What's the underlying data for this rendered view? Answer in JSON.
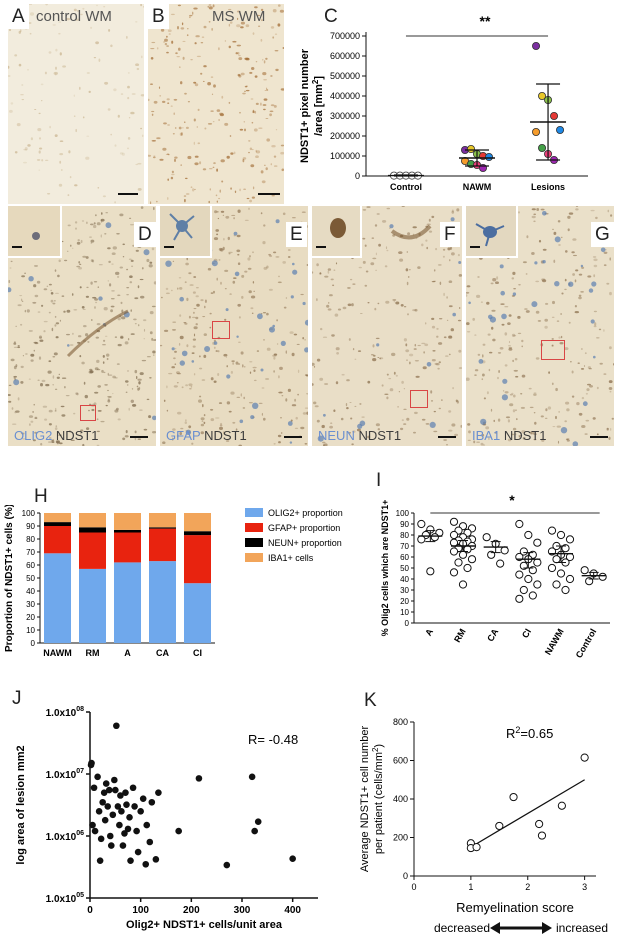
{
  "panels": {
    "A": {
      "letter": "A",
      "label": "control WM"
    },
    "B": {
      "letter": "B",
      "label": "MS WM"
    },
    "C": {
      "letter": "C"
    },
    "D": {
      "letter": "D",
      "stain_a": "OLIG2",
      "stain_b": "NDST1"
    },
    "E": {
      "letter": "E",
      "stain_a": "GFAP",
      "stain_b": "NDST1"
    },
    "F": {
      "letter": "F",
      "stain_a": "NEUN",
      "stain_b": "NDST1"
    },
    "G": {
      "letter": "G",
      "stain_a": "IBA1",
      "stain_b": "NDST1"
    },
    "H": {
      "letter": "H"
    },
    "I": {
      "letter": "I"
    },
    "J": {
      "letter": "J"
    },
    "K": {
      "letter": "K"
    }
  },
  "colors": {
    "olig2": "#6fa8ec",
    "gfap": "#e8230f",
    "neun": "#000000",
    "iba1": "#f2a55a",
    "tissue": "#f1e9d8",
    "dab": "#a06a32"
  },
  "chart_data": [
    {
      "panel": "C",
      "type": "scatter",
      "ylabel_line1": "NDST1+ pixel number",
      "ylabel_line2": "/area [mm",
      "ylabel_sup": "2",
      "ylabel_end": "]",
      "ylim": [
        0,
        700000
      ],
      "yticks": [
        "0",
        "100000",
        "200000",
        "300000",
        "400000",
        "500000",
        "600000",
        "700000"
      ],
      "categories": [
        "Control",
        "NAWM",
        "Lesions"
      ],
      "significance": "**",
      "groups": [
        {
          "name": "Control",
          "mean": 2000,
          "sd_low": 0,
          "sd_high": 5000,
          "points": [
            2000,
            2000,
            2000,
            2000,
            2000
          ]
        },
        {
          "name": "NAWM",
          "mean": 90000,
          "sd_low": 50000,
          "sd_high": 130000,
          "points": [
            130000,
            135000,
            110000,
            100000,
            95000,
            75000,
            60000,
            55000,
            40000
          ]
        },
        {
          "name": "Lesions",
          "mean": 270000,
          "sd_low": 80000,
          "sd_high": 460000,
          "points": [
            650000,
            400000,
            380000,
            300000,
            230000,
            220000,
            140000,
            110000,
            80000
          ]
        }
      ],
      "point_colors": [
        "#7b2ea0",
        "#e8c829",
        "#8bc34a",
        "#e53935",
        "#1e88e5",
        "#f59c2c",
        "#43a047",
        "#ec407a",
        "#9c27b0"
      ]
    },
    {
      "panel": "H",
      "type": "bar",
      "stacked": true,
      "ylabel": "Proportion of NDST1+ cells (%)",
      "ylim": [
        0,
        100
      ],
      "yticks": [
        "0",
        "10",
        "20",
        "30",
        "40",
        "50",
        "60",
        "70",
        "80",
        "90",
        "100"
      ],
      "categories": [
        "NAWM",
        "RM",
        "A",
        "CA",
        "CI"
      ],
      "series": [
        {
          "name": "OLIG2+ proportion",
          "values": [
            69,
            57,
            62,
            63,
            46
          ]
        },
        {
          "name": "GFAP+ proportion",
          "values": [
            21,
            28,
            23,
            25,
            37
          ]
        },
        {
          "name": "NEUN+ proportion",
          "values": [
            3,
            4,
            2,
            1,
            3
          ]
        },
        {
          "name": "IBA1+ cells",
          "values": [
            7,
            11,
            13,
            11,
            14
          ]
        }
      ]
    },
    {
      "panel": "I",
      "type": "scatter",
      "ylabel": "% Olig2 cells which are NDST1+",
      "ylim": [
        0,
        100
      ],
      "yticks": [
        "0",
        "10",
        "20",
        "30",
        "40",
        "50",
        "60",
        "70",
        "80",
        "90",
        "100"
      ],
      "categories": [
        "A",
        "RM",
        "CA",
        "CI",
        "NAWM",
        "Control"
      ],
      "significance": "*",
      "groups": [
        {
          "name": "A",
          "mean": 79,
          "sd_low": 74,
          "sd_high": 84,
          "points": [
            90,
            85,
            82,
            80,
            78,
            76,
            47
          ]
        },
        {
          "name": "RM",
          "mean": 70,
          "sd_low": 65,
          "sd_high": 75,
          "points": [
            92,
            88,
            86,
            84,
            82,
            80,
            78,
            76,
            75,
            74,
            73,
            72,
            70,
            68,
            67,
            65,
            62,
            58,
            55,
            50,
            46,
            35
          ]
        },
        {
          "name": "CA",
          "mean": 69,
          "sd_low": 64,
          "sd_high": 74,
          "points": [
            78,
            72,
            66,
            62,
            54
          ]
        },
        {
          "name": "CI",
          "mean": 58,
          "sd_low": 50,
          "sd_high": 64,
          "points": [
            90,
            80,
            73,
            65,
            62,
            60,
            58,
            55,
            52,
            48,
            44,
            40,
            35,
            30,
            25,
            22
          ]
        },
        {
          "name": "NAWM",
          "mean": 63,
          "sd_low": 55,
          "sd_high": 70,
          "points": [
            84,
            80,
            76,
            70,
            68,
            65,
            62,
            60,
            58,
            55,
            50,
            45,
            40,
            35,
            30
          ]
        },
        {
          "name": "Control",
          "mean": 43,
          "sd_low": 40,
          "sd_high": 46,
          "points": [
            48,
            45,
            42,
            38
          ]
        }
      ]
    },
    {
      "panel": "J",
      "type": "scatter",
      "xlabel": "Olig2+ NDST1+ cells/unit area",
      "ylabel": "log area of lesion mm2",
      "xlim": [
        0,
        450
      ],
      "xticks": [
        0,
        100,
        200,
        300,
        400
      ],
      "ylog": true,
      "yticks": [
        "1.0x10",
        "1.0x10",
        "1.0x10",
        "1.0x10"
      ],
      "ytick_exps": [
        "05",
        "06",
        "07",
        "08"
      ],
      "annotation": "R= -0.48",
      "points": [
        [
          2,
          14000000
        ],
        [
          3,
          15000000
        ],
        [
          5,
          1500000
        ],
        [
          8,
          6000000
        ],
        [
          10,
          1200000
        ],
        [
          15,
          9000000
        ],
        [
          18,
          2500000
        ],
        [
          20,
          400000
        ],
        [
          22,
          900000
        ],
        [
          25,
          3500000
        ],
        [
          28,
          5000000
        ],
        [
          30,
          1800000
        ],
        [
          32,
          7000000
        ],
        [
          35,
          3000000
        ],
        [
          38,
          5500000
        ],
        [
          40,
          1000000
        ],
        [
          42,
          700000
        ],
        [
          45,
          2200000
        ],
        [
          48,
          8000000
        ],
        [
          50,
          5500000
        ],
        [
          52,
          60000000
        ],
        [
          55,
          3000000
        ],
        [
          58,
          1500000
        ],
        [
          60,
          4500000
        ],
        [
          62,
          2500000
        ],
        [
          65,
          700000
        ],
        [
          68,
          1100000
        ],
        [
          70,
          5000000
        ],
        [
          72,
          3200000
        ],
        [
          75,
          1300000
        ],
        [
          78,
          2000000
        ],
        [
          80,
          400000
        ],
        [
          85,
          6000000
        ],
        [
          88,
          3000000
        ],
        [
          92,
          1200000
        ],
        [
          95,
          550000
        ],
        [
          100,
          2500000
        ],
        [
          105,
          4000000
        ],
        [
          110,
          350000
        ],
        [
          112,
          1500000
        ],
        [
          118,
          800000
        ],
        [
          122,
          3500000
        ],
        [
          130,
          420000
        ],
        [
          135,
          5000000
        ],
        [
          175,
          1200000
        ],
        [
          215,
          8500000
        ],
        [
          270,
          340000
        ],
        [
          320,
          9000000
        ],
        [
          325,
          1200000
        ],
        [
          332,
          1700000
        ],
        [
          400,
          430000
        ]
      ]
    },
    {
      "panel": "K",
      "type": "scatter",
      "xlabel": "Remyelination score",
      "ylabel_line1": "Average NDST1+ cell number",
      "ylabel_line2": "per patient (cells/mm",
      "ylabel_sup": "2",
      "ylabel_end": ")",
      "xlim": [
        0,
        3.2
      ],
      "ylim": [
        0,
        800
      ],
      "xticks": [
        0,
        1,
        2,
        3
      ],
      "yticks": [
        0,
        200,
        400,
        600,
        800
      ],
      "annotation_base": "R",
      "annotation_sup": "2",
      "annotation_val": "=0.65",
      "trend": [
        [
          1.0,
          150
        ],
        [
          3.0,
          500
        ]
      ],
      "points": [
        [
          1.0,
          170
        ],
        [
          1.0,
          145
        ],
        [
          1.1,
          150
        ],
        [
          1.5,
          260
        ],
        [
          1.75,
          410
        ],
        [
          2.2,
          270
        ],
        [
          2.25,
          210
        ],
        [
          2.6,
          365
        ],
        [
          3.0,
          615
        ]
      ],
      "scale_low": "decreased",
      "scale_high": "increased"
    }
  ]
}
